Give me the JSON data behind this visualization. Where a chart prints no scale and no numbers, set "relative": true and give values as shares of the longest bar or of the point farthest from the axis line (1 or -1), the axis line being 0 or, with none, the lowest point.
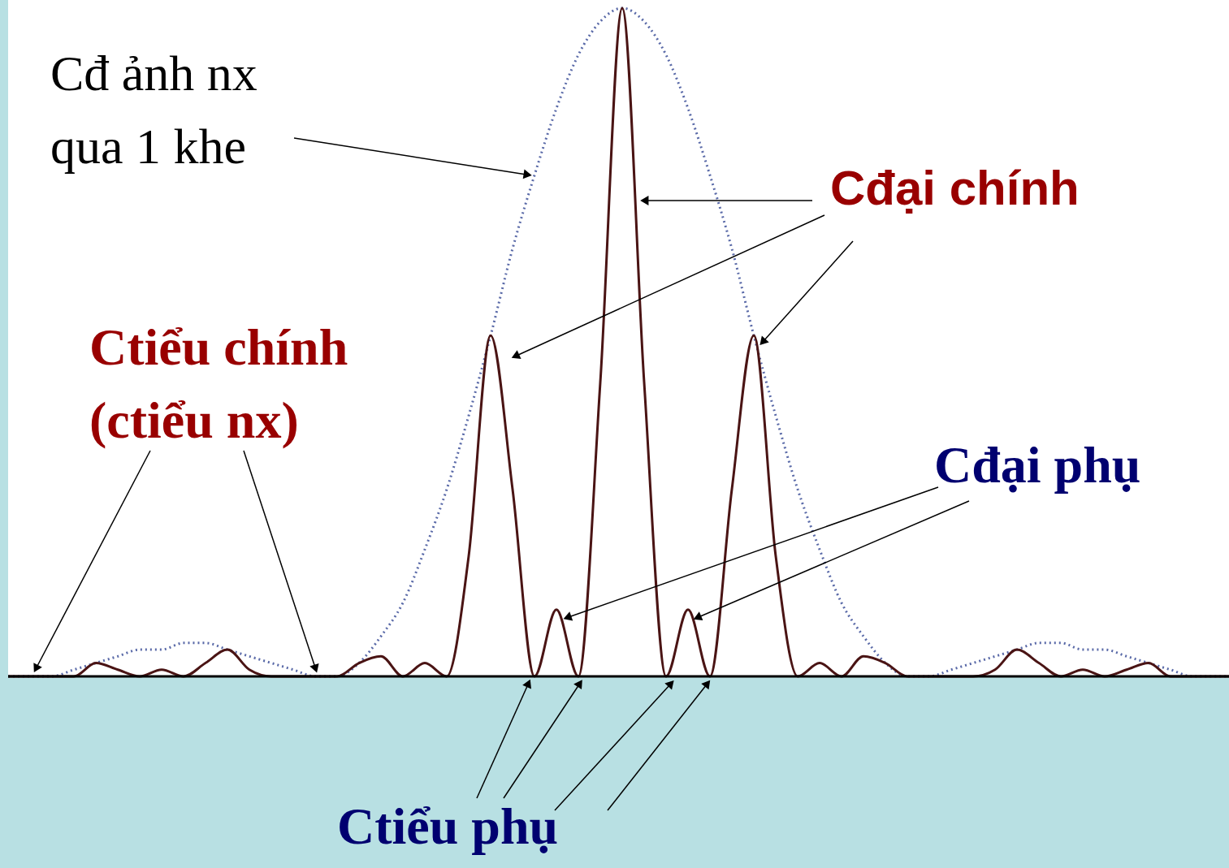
{
  "chart_data": {
    "type": "line",
    "relative": true,
    "categories": [
      null,
      null,
      null,
      null,
      null,
      null,
      null,
      null,
      null,
      null,
      null,
      null,
      null,
      null,
      null,
      null,
      null,
      null,
      null,
      null,
      null,
      null,
      null,
      null,
      null,
      null,
      null,
      null,
      null,
      null,
      null,
      null,
      null,
      null,
      null,
      null,
      null,
      null,
      null,
      null,
      null,
      null,
      null,
      null,
      null,
      null,
      null,
      null,
      null,
      null,
      null,
      null,
      null,
      null,
      null,
      null,
      null
    ],
    "series": [
      {
        "color": "#5a6aa8",
        "line_style": "dotted",
        "values": [
          0,
          0,
          0,
          0.01,
          0.02,
          0.03,
          0.04,
          0.04,
          0.05,
          0.05,
          0.04,
          0.03,
          0.02,
          0.01,
          0,
          0,
          0.02,
          0.06,
          0.11,
          0.19,
          0.28,
          0.39,
          0.51,
          0.64,
          0.75,
          0.85,
          0.93,
          0.98,
          1,
          0.98,
          0.93,
          0.85,
          0.75,
          0.64,
          0.51,
          0.39,
          0.28,
          0.19,
          0.11,
          0.06,
          0.02,
          0,
          0,
          0.01,
          0.02,
          0.03,
          0.04,
          0.05,
          0.05,
          0.04,
          0.04,
          0.03,
          0.02,
          0.01,
          0,
          0,
          0
        ]
      },
      {
        "color": "#4a1414",
        "line_style": "solid",
        "values": [
          0,
          0,
          0,
          0,
          0.02,
          0.01,
          0,
          0.01,
          0,
          0.02,
          0.04,
          0.01,
          0,
          0,
          0,
          0,
          0.02,
          0.03,
          0,
          0.02,
          0,
          0.18,
          0.51,
          0.28,
          0,
          0.1,
          0,
          0.44,
          1,
          0.44,
          0,
          0.1,
          0,
          0.28,
          0.51,
          0.18,
          0,
          0.02,
          0,
          0.03,
          0.02,
          0,
          0,
          0,
          0,
          0.01,
          0.04,
          0.02,
          0,
          0.01,
          0,
          0.01,
          0.02,
          0,
          0,
          0,
          0
        ]
      }
    ],
    "annotations": [
      "Cđ ảnh nx\nqua 1 khe",
      "Cđại chính",
      "Ctiểu chính\n(ctiểu nx)",
      "Cđại phụ",
      "Ctiểu phụ"
    ]
  }
}
